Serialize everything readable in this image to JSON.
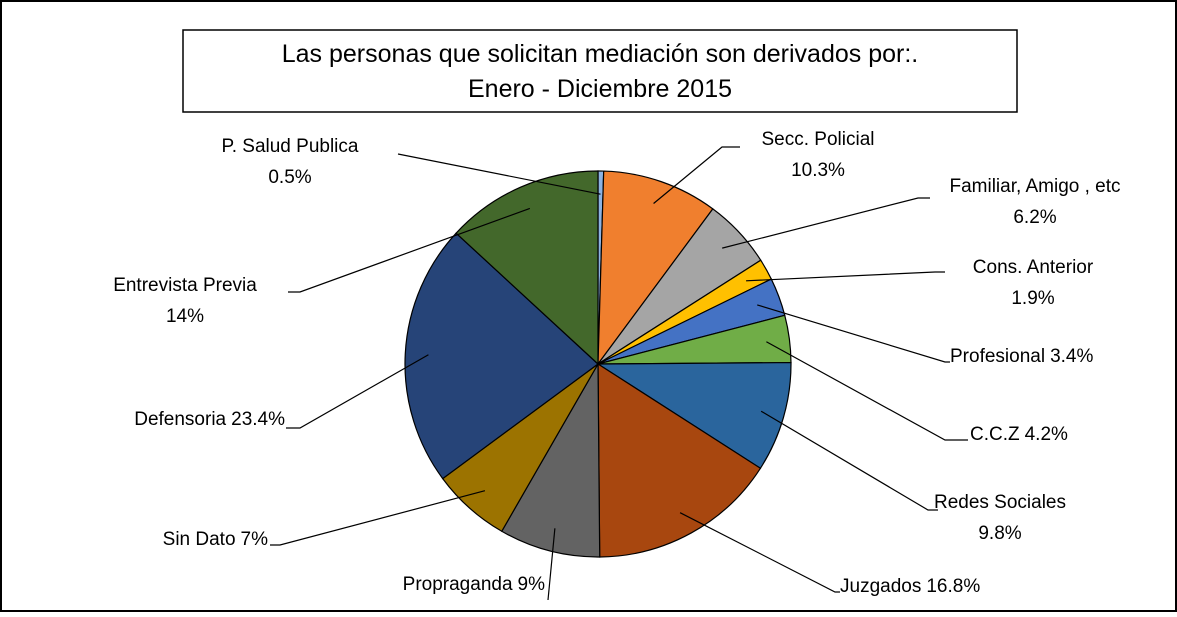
{
  "chart_data": {
    "type": "pie",
    "title": "Las personas que solicitan mediación son derivados por:.",
    "subtitle": "Enero - Diciembre 2015",
    "categories": [
      "P. Salud Publica",
      "Secc. Policial",
      "Familiar, Amigo , etc",
      "Cons. Anterior",
      "Profesional",
      "C.C.Z",
      "Redes Sociales",
      "Juzgados",
      "Propraganda",
      "Sin Dato",
      "Defensoria",
      "Entrevista Previa"
    ],
    "values": [
      0.5,
      10.3,
      6.2,
      1.9,
      3.4,
      4.2,
      9.8,
      16.8,
      9,
      7,
      23.4,
      14
    ],
    "value_labels": [
      "0.5%",
      "10.3%",
      "6.2%",
      "1.9%",
      "3.4%",
      "4.2%",
      "9.8%",
      "16.8%",
      "9%",
      "7%",
      "23.4%",
      "14%"
    ],
    "colors": [
      "#8db3e2",
      "#f07f2e",
      "#a5a5a5",
      "#ffc000",
      "#4472c4",
      "#70ad47",
      "#2a659d",
      "#a8470f",
      "#636363",
      "#9c7300",
      "#264478",
      "#43682b"
    ]
  }
}
